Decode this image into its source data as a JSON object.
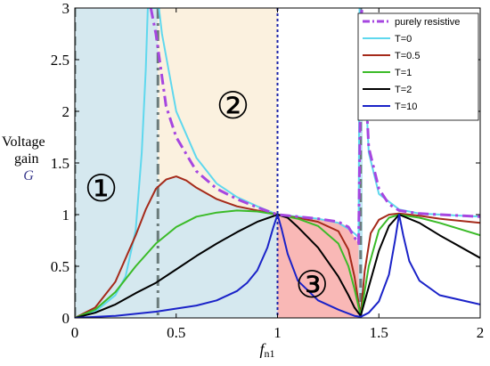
{
  "chart_data": {
    "type": "line",
    "xlabel": "f",
    "xlabel_sub": "n1",
    "ylabel_line1": "Voltage",
    "ylabel_line2": "gain",
    "ylabel_symbol": "G",
    "xlim": [
      0,
      2
    ],
    "ylim": [
      0,
      3
    ],
    "x_ticks": [
      "0",
      "0.5",
      "1",
      "1.5",
      "2"
    ],
    "y_ticks": [
      "0",
      "0.5",
      "1",
      "1.5",
      "2",
      "2.5",
      "3"
    ],
    "legend_position": "top-right",
    "series": [
      {
        "name": "purely resistive",
        "color": "#a646e0",
        "style": "dash-dot",
        "points": [
          [
            0.375,
            3.0
          ],
          [
            0.4,
            2.75
          ],
          [
            0.45,
            2.05
          ],
          [
            0.5,
            1.75
          ],
          [
            0.6,
            1.42
          ],
          [
            0.7,
            1.25
          ],
          [
            0.8,
            1.15
          ],
          [
            0.9,
            1.07
          ],
          [
            1.0,
            1.0
          ],
          [
            1.1,
            0.98
          ],
          [
            1.2,
            0.96
          ],
          [
            1.3,
            0.93
          ],
          [
            1.35,
            0.88
          ],
          [
            1.38,
            0.78
          ],
          [
            1.4,
            0.72
          ],
          [
            1.405,
            1.5
          ],
          [
            1.41,
            2.5
          ],
          [
            1.415,
            3.0
          ],
          [
            1.45,
            1.65
          ],
          [
            1.5,
            1.25
          ],
          [
            1.55,
            1.1
          ],
          [
            1.6,
            1.04
          ],
          [
            1.7,
            1.01
          ],
          [
            1.8,
            1.0
          ],
          [
            2.0,
            0.98
          ]
        ]
      },
      {
        "name": "T=0",
        "color": "#5fd8ee",
        "style": "solid",
        "points": [
          [
            0.0,
            0.0
          ],
          [
            0.1,
            0.06
          ],
          [
            0.2,
            0.22
          ],
          [
            0.25,
            0.4
          ],
          [
            0.3,
            0.85
          ],
          [
            0.33,
            1.6
          ],
          [
            0.35,
            2.4
          ],
          [
            0.36,
            3.0
          ],
          [
            0.415,
            3.0
          ],
          [
            0.43,
            2.75
          ],
          [
            0.5,
            2.0
          ],
          [
            0.6,
            1.55
          ],
          [
            0.7,
            1.3
          ],
          [
            0.8,
            1.17
          ],
          [
            0.9,
            1.08
          ],
          [
            1.0,
            1.0
          ],
          [
            1.1,
            0.98
          ],
          [
            1.2,
            0.96
          ],
          [
            1.3,
            0.92
          ],
          [
            1.36,
            0.85
          ],
          [
            1.39,
            0.8
          ],
          [
            1.4,
            0.78
          ],
          [
            1.405,
            3.0
          ],
          [
            1.43,
            2.4
          ],
          [
            1.45,
            1.6
          ],
          [
            1.5,
            1.2
          ],
          [
            1.6,
            1.05
          ],
          [
            1.7,
            1.01
          ],
          [
            2.0,
            0.98
          ]
        ]
      },
      {
        "name": "T=0.5",
        "color": "#a52a1a",
        "style": "solid",
        "points": [
          [
            0.0,
            0.0
          ],
          [
            0.1,
            0.1
          ],
          [
            0.2,
            0.35
          ],
          [
            0.3,
            0.8
          ],
          [
            0.35,
            1.05
          ],
          [
            0.4,
            1.25
          ],
          [
            0.45,
            1.34
          ],
          [
            0.5,
            1.37
          ],
          [
            0.55,
            1.33
          ],
          [
            0.6,
            1.26
          ],
          [
            0.7,
            1.15
          ],
          [
            0.8,
            1.08
          ],
          [
            0.9,
            1.04
          ],
          [
            1.0,
            1.0
          ],
          [
            1.1,
            0.97
          ],
          [
            1.2,
            0.93
          ],
          [
            1.3,
            0.84
          ],
          [
            1.35,
            0.66
          ],
          [
            1.38,
            0.4
          ],
          [
            1.41,
            0.02
          ],
          [
            1.43,
            0.45
          ],
          [
            1.46,
            0.82
          ],
          [
            1.5,
            0.95
          ],
          [
            1.55,
            1.0
          ],
          [
            1.6,
            1.01
          ],
          [
            1.7,
            0.99
          ],
          [
            1.8,
            0.96
          ],
          [
            2.0,
            0.92
          ]
        ]
      },
      {
        "name": "T=1",
        "color": "#3bbb28",
        "style": "solid",
        "points": [
          [
            0.0,
            0.0
          ],
          [
            0.1,
            0.08
          ],
          [
            0.2,
            0.25
          ],
          [
            0.3,
            0.5
          ],
          [
            0.4,
            0.72
          ],
          [
            0.5,
            0.88
          ],
          [
            0.6,
            0.98
          ],
          [
            0.7,
            1.02
          ],
          [
            0.8,
            1.04
          ],
          [
            0.9,
            1.03
          ],
          [
            1.0,
            1.0
          ],
          [
            1.1,
            0.96
          ],
          [
            1.2,
            0.89
          ],
          [
            1.3,
            0.72
          ],
          [
            1.35,
            0.5
          ],
          [
            1.38,
            0.28
          ],
          [
            1.41,
            0.02
          ],
          [
            1.45,
            0.5
          ],
          [
            1.5,
            0.85
          ],
          [
            1.55,
            0.97
          ],
          [
            1.6,
            1.0
          ],
          [
            1.7,
            0.97
          ],
          [
            1.8,
            0.92
          ],
          [
            2.0,
            0.8
          ]
        ]
      },
      {
        "name": "T=2",
        "color": "#000000",
        "style": "solid",
        "points": [
          [
            0.0,
            0.0
          ],
          [
            0.1,
            0.05
          ],
          [
            0.2,
            0.13
          ],
          [
            0.3,
            0.24
          ],
          [
            0.4,
            0.34
          ],
          [
            0.5,
            0.47
          ],
          [
            0.6,
            0.6
          ],
          [
            0.7,
            0.72
          ],
          [
            0.8,
            0.83
          ],
          [
            0.9,
            0.93
          ],
          [
            1.0,
            1.0
          ],
          [
            1.05,
            0.97
          ],
          [
            1.1,
            0.88
          ],
          [
            1.2,
            0.68
          ],
          [
            1.3,
            0.4
          ],
          [
            1.35,
            0.22
          ],
          [
            1.38,
            0.1
          ],
          [
            1.41,
            0.02
          ],
          [
            1.45,
            0.3
          ],
          [
            1.5,
            0.65
          ],
          [
            1.55,
            0.89
          ],
          [
            1.6,
            1.0
          ],
          [
            1.7,
            0.92
          ],
          [
            1.8,
            0.8
          ],
          [
            2.0,
            0.58
          ]
        ]
      },
      {
        "name": "T=10",
        "color": "#1a22c8",
        "style": "solid",
        "points": [
          [
            0.0,
            0.0
          ],
          [
            0.2,
            0.02
          ],
          [
            0.4,
            0.06
          ],
          [
            0.6,
            0.12
          ],
          [
            0.7,
            0.17
          ],
          [
            0.8,
            0.26
          ],
          [
            0.85,
            0.34
          ],
          [
            0.9,
            0.46
          ],
          [
            0.95,
            0.68
          ],
          [
            0.98,
            0.88
          ],
          [
            1.0,
            1.0
          ],
          [
            1.02,
            0.86
          ],
          [
            1.05,
            0.62
          ],
          [
            1.1,
            0.36
          ],
          [
            1.2,
            0.17
          ],
          [
            1.3,
            0.08
          ],
          [
            1.38,
            0.02
          ],
          [
            1.41,
            0.01
          ],
          [
            1.45,
            0.05
          ],
          [
            1.5,
            0.16
          ],
          [
            1.55,
            0.42
          ],
          [
            1.58,
            0.75
          ],
          [
            1.6,
            1.0
          ],
          [
            1.62,
            0.8
          ],
          [
            1.65,
            0.55
          ],
          [
            1.7,
            0.36
          ],
          [
            1.8,
            0.22
          ],
          [
            2.0,
            0.13
          ]
        ]
      }
    ],
    "regions": [
      {
        "label": "①",
        "color": "#d5e8ef",
        "x_range": [
          0,
          1
        ],
        "bounded_by": "T=0 curve (upper left) and purely resistive curve"
      },
      {
        "label": "②",
        "color": "#fbf1df",
        "x_range": [
          0.41,
          1
        ]
      },
      {
        "label": "③",
        "color": "#f9b8b6",
        "x_range": [
          1,
          1.41
        ]
      }
    ],
    "vertical_lines": [
      {
        "x": 0,
        "style": "dashed",
        "color": "#6b7b7b"
      },
      {
        "x": 0.41,
        "style": "dash-dot",
        "color": "#6b7b7b"
      },
      {
        "x": 1,
        "style": "dotted",
        "color": "#1a22a8"
      },
      {
        "x": 1.41,
        "style": "dashed",
        "color": "#6b7b7b"
      }
    ]
  }
}
